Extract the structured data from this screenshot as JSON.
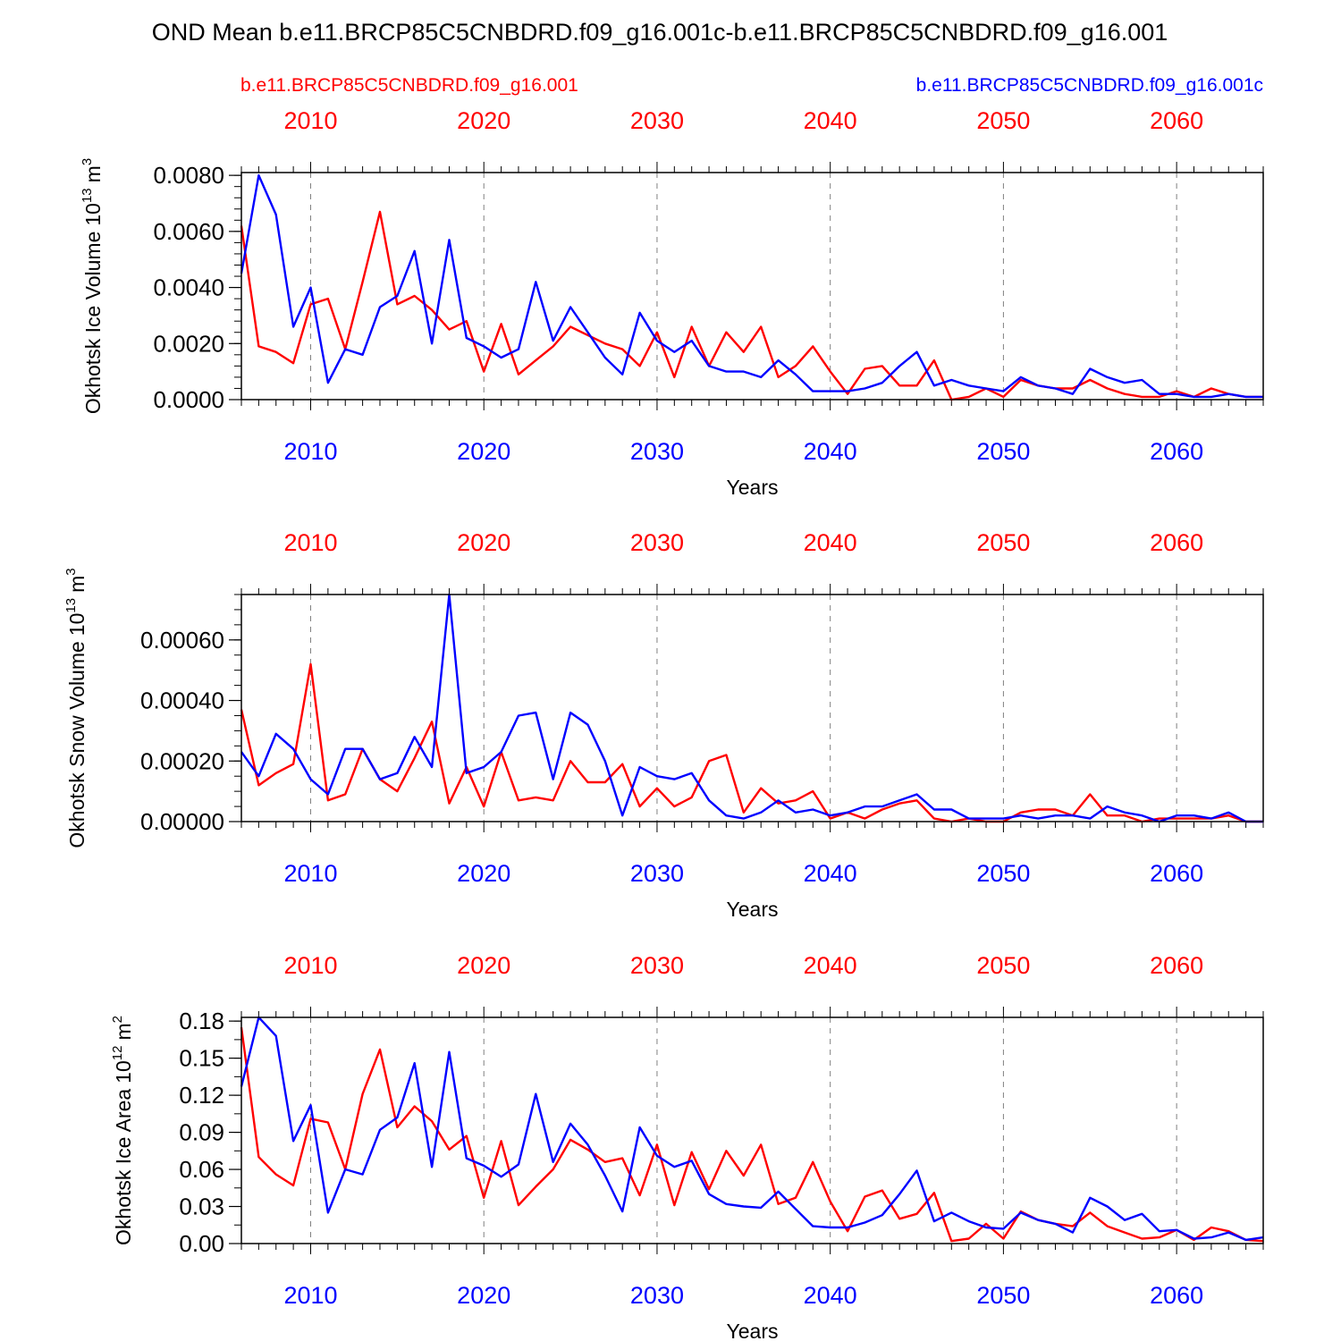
{
  "title": "OND Mean b.e11.BRCP85C5CNBDRD.f09_g16.001c-b.e11.BRCP85C5CNBDRD.f09_g16.001",
  "colors": {
    "series_a": "#ff0000",
    "series_b": "#0000ff",
    "axis": "#000000",
    "grid": "#808080"
  },
  "legend": {
    "left_label": "b.e11.BRCP85C5CNBDRD.f09_g16.001",
    "right_label": "b.e11.BRCP85C5CNBDRD.f09_g16.001c"
  },
  "chart_data": [
    {
      "type": "line",
      "ylabel": "Okhotsk Ice Volume",
      "units": {
        "base": "10",
        "exp": "13",
        "unit": "m",
        "unit_exp": "3"
      },
      "xlabel": "Years",
      "xlim": [
        2006,
        2065
      ],
      "ylim": [
        0,
        0.0081
      ],
      "yticks": [
        0,
        0.002,
        0.004,
        0.006,
        0.008
      ],
      "ytick_labels": [
        "0.0000",
        "0.0020",
        "0.0040",
        "0.0060",
        "0.0080"
      ],
      "minor_step": 0.0004,
      "xticks": [
        2010,
        2020,
        2030,
        2040,
        2050,
        2060
      ],
      "xtick_labels": [
        "2010",
        "2020",
        "2030",
        "2040",
        "2050",
        "2060"
      ],
      "start_year": 2006,
      "series": [
        {
          "name": "b.e11.BRCP85C5CNBDRD.f09_g16.001",
          "color": "#ff0000",
          "values": [
            0.0062,
            0.0019,
            0.0017,
            0.0013,
            0.0034,
            0.0036,
            0.0018,
            0.0042,
            0.0067,
            0.0034,
            0.0037,
            0.0032,
            0.0025,
            0.0028,
            0.001,
            0.0027,
            0.0009,
            0.0014,
            0.0019,
            0.0026,
            0.0023,
            0.002,
            0.0018,
            0.0012,
            0.0024,
            0.0008,
            0.0026,
            0.0012,
            0.0024,
            0.0017,
            0.0026,
            0.0008,
            0.0012,
            0.0019,
            0.001,
            0.0002,
            0.0011,
            0.0012,
            0.0005,
            0.0005,
            0.0014,
            0.0,
            0.0001,
            0.0004,
            0.0001,
            0.0007,
            0.0005,
            0.0004,
            0.0004,
            0.0007,
            0.0004,
            0.0002,
            0.0001,
            0.0001,
            0.0003,
            0.0001,
            0.0004,
            0.0002,
            0.0001,
            0.0001
          ]
        },
        {
          "name": "b.e11.BRCP85C5CNBDRD.f09_g16.001c",
          "color": "#0000ff",
          "values": [
            0.0045,
            0.008,
            0.0066,
            0.0026,
            0.004,
            0.0006,
            0.0018,
            0.0016,
            0.0033,
            0.0037,
            0.0053,
            0.002,
            0.0057,
            0.0022,
            0.0019,
            0.0015,
            0.0018,
            0.0042,
            0.0021,
            0.0033,
            0.0024,
            0.0015,
            0.0009,
            0.0031,
            0.0021,
            0.0017,
            0.0021,
            0.0012,
            0.001,
            0.001,
            0.0008,
            0.0014,
            0.0009,
            0.0003,
            0.0003,
            0.0003,
            0.0004,
            0.0006,
            0.0012,
            0.0017,
            0.0005,
            0.0007,
            0.0005,
            0.0004,
            0.0003,
            0.0008,
            0.0005,
            0.0004,
            0.0002,
            0.0011,
            0.0008,
            0.0006,
            0.0007,
            0.0002,
            0.0002,
            0.0001,
            0.0001,
            0.0002,
            0.0001,
            0.0001
          ]
        }
      ]
    },
    {
      "type": "line",
      "ylabel": "Okhotsk Snow Volume",
      "units": {
        "base": "10",
        "exp": "13",
        "unit": "m",
        "unit_exp": "3"
      },
      "xlabel": "Years",
      "xlim": [
        2006,
        2065
      ],
      "ylim": [
        0,
        0.00075
      ],
      "yticks": [
        0,
        0.0002,
        0.0004,
        0.0006
      ],
      "ytick_labels": [
        "0.00000",
        "0.00020",
        "0.00040",
        "0.00060"
      ],
      "minor_step": 5e-05,
      "xticks": [
        2010,
        2020,
        2030,
        2040,
        2050,
        2060
      ],
      "xtick_labels": [
        "2010",
        "2020",
        "2030",
        "2040",
        "2050",
        "2060"
      ],
      "start_year": 2006,
      "series": [
        {
          "name": "b.e11.BRCP85C5CNBDRD.f09_g16.001",
          "color": "#ff0000",
          "values": [
            0.00037,
            0.00012,
            0.00016,
            0.00019,
            0.00052,
            7e-05,
            9e-05,
            0.00024,
            0.00014,
            0.0001,
            0.00021,
            0.00033,
            6e-05,
            0.00018,
            5e-05,
            0.00023,
            7e-05,
            8e-05,
            7e-05,
            0.0002,
            0.00013,
            0.00013,
            0.00019,
            5e-05,
            0.00011,
            5e-05,
            8e-05,
            0.0002,
            0.00022,
            3e-05,
            0.00011,
            6e-05,
            7e-05,
            0.0001,
            1e-05,
            3e-05,
            1e-05,
            4e-05,
            6e-05,
            7e-05,
            1e-05,
            0.0,
            1e-05,
            0.0,
            0.0,
            3e-05,
            4e-05,
            4e-05,
            2e-05,
            9e-05,
            2e-05,
            2e-05,
            0.0,
            1e-05,
            1e-05,
            1e-05,
            1e-05,
            2e-05,
            0.0,
            0.0
          ]
        },
        {
          "name": "b.e11.BRCP85C5CNBDRD.f09_g16.001c",
          "color": "#0000ff",
          "values": [
            0.00023,
            0.00015,
            0.00029,
            0.00024,
            0.00014,
            9e-05,
            0.00024,
            0.00024,
            0.00014,
            0.00016,
            0.00028,
            0.00018,
            0.00075,
            0.00016,
            0.00018,
            0.00023,
            0.00035,
            0.00036,
            0.00014,
            0.00036,
            0.00032,
            0.0002,
            2e-05,
            0.00018,
            0.00015,
            0.00014,
            0.00016,
            7e-05,
            2e-05,
            1e-05,
            3e-05,
            7e-05,
            3e-05,
            4e-05,
            2e-05,
            3e-05,
            5e-05,
            5e-05,
            7e-05,
            9e-05,
            4e-05,
            4e-05,
            1e-05,
            1e-05,
            1e-05,
            2e-05,
            1e-05,
            2e-05,
            2e-05,
            1e-05,
            5e-05,
            3e-05,
            2e-05,
            0.0,
            2e-05,
            2e-05,
            1e-05,
            3e-05,
            0.0,
            0.0
          ]
        }
      ]
    },
    {
      "type": "line",
      "ylabel": "Okhotsk Ice Area",
      "units": {
        "base": "10",
        "exp": "12",
        "unit": "m",
        "unit_exp": "2"
      },
      "xlabel": "Years",
      "xlim": [
        2006,
        2065
      ],
      "ylim": [
        0,
        0.183
      ],
      "yticks": [
        0,
        0.03,
        0.06,
        0.09,
        0.12,
        0.15,
        0.18
      ],
      "ytick_labels": [
        "0.00",
        "0.03",
        "0.06",
        "0.09",
        "0.12",
        "0.15",
        "0.18"
      ],
      "minor_step": 0.015,
      "xticks": [
        2010,
        2020,
        2030,
        2040,
        2050,
        2060
      ],
      "xtick_labels": [
        "2010",
        "2020",
        "2030",
        "2040",
        "2050",
        "2060"
      ],
      "start_year": 2006,
      "series": [
        {
          "name": "b.e11.BRCP85C5CNBDRD.f09_g16.001",
          "color": "#ff0000",
          "values": [
            0.175,
            0.07,
            0.056,
            0.047,
            0.101,
            0.098,
            0.06,
            0.121,
            0.157,
            0.094,
            0.111,
            0.099,
            0.076,
            0.087,
            0.037,
            0.083,
            0.031,
            0.046,
            0.06,
            0.084,
            0.076,
            0.066,
            0.069,
            0.039,
            0.08,
            0.031,
            0.074,
            0.044,
            0.075,
            0.055,
            0.08,
            0.032,
            0.037,
            0.066,
            0.034,
            0.01,
            0.038,
            0.043,
            0.02,
            0.024,
            0.041,
            0.002,
            0.004,
            0.016,
            0.004,
            0.026,
            0.019,
            0.016,
            0.014,
            0.025,
            0.014,
            0.009,
            0.004,
            0.005,
            0.011,
            0.003,
            0.013,
            0.01,
            0.003,
            0.002
          ]
        },
        {
          "name": "b.e11.BRCP85C5CNBDRD.f09_g16.001c",
          "color": "#0000ff",
          "values": [
            0.127,
            0.183,
            0.168,
            0.083,
            0.112,
            0.025,
            0.06,
            0.056,
            0.092,
            0.102,
            0.146,
            0.062,
            0.155,
            0.069,
            0.063,
            0.054,
            0.064,
            0.121,
            0.066,
            0.097,
            0.08,
            0.055,
            0.026,
            0.094,
            0.071,
            0.062,
            0.067,
            0.04,
            0.032,
            0.03,
            0.029,
            0.042,
            0.028,
            0.014,
            0.013,
            0.013,
            0.017,
            0.023,
            0.04,
            0.059,
            0.018,
            0.025,
            0.018,
            0.013,
            0.012,
            0.025,
            0.019,
            0.016,
            0.009,
            0.037,
            0.03,
            0.019,
            0.024,
            0.01,
            0.011,
            0.004,
            0.005,
            0.009,
            0.003,
            0.005
          ]
        }
      ]
    }
  ]
}
